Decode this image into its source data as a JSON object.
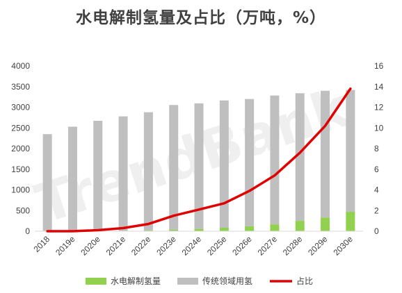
{
  "chart_data": {
    "type": "bar",
    "title": "水电解制氢量及占比（万吨，%）",
    "watermark": "TrendBank",
    "categories": [
      "2018",
      "2019e",
      "2020e",
      "2021e",
      "2022e",
      "2023e",
      "2024e",
      "2025e",
      "2026e",
      "2027e",
      "2028e",
      "2029e",
      "2030e"
    ],
    "y_left": {
      "ticks": [
        "0",
        "500",
        "1000",
        "1500",
        "2000",
        "2500",
        "3000",
        "3500",
        "4000"
      ],
      "min": 0,
      "max": 4000
    },
    "y_right": {
      "ticks": [
        "0",
        "2",
        "4",
        "6",
        "8",
        "10",
        "12",
        "14",
        "16"
      ],
      "min": 0,
      "max": 16
    },
    "series": [
      {
        "name": "水电解制氢量",
        "type": "stacked-bar",
        "color": "#92D050",
        "values": [
          0,
          0,
          3,
          10,
          20,
          35,
          55,
          85,
          120,
          165,
          250,
          330,
          470
        ]
      },
      {
        "name": "传统领域用氢",
        "type": "stacked-bar",
        "color": "#BFBFBF",
        "values": [
          2350,
          2530,
          2670,
          2770,
          2860,
          3020,
          3040,
          3080,
          3080,
          3120,
          3090,
          3070,
          2950
        ]
      },
      {
        "name": "占比",
        "type": "line",
        "axis": "right",
        "color": "#E00000",
        "values": [
          0,
          0,
          0.1,
          0.3,
          0.7,
          1.5,
          2.1,
          2.7,
          3.9,
          5.4,
          7.6,
          10.2,
          13.8
        ]
      }
    ],
    "legend_position": "bottom",
    "grid": false
  }
}
